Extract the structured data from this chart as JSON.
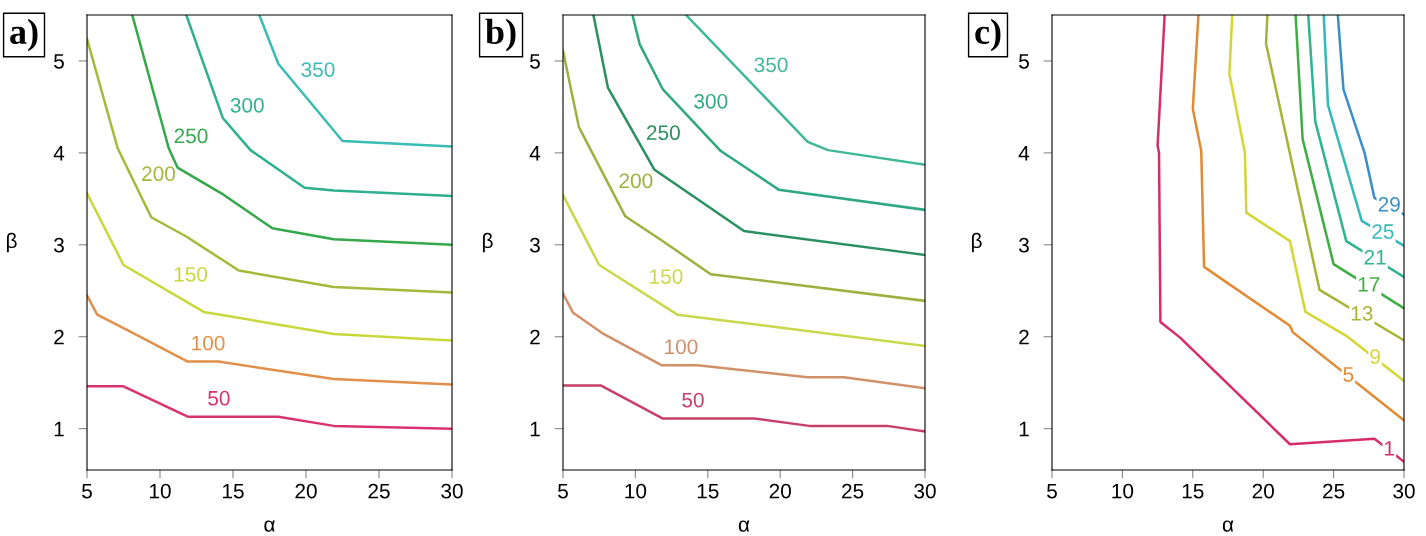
{
  "chart_data": [
    {
      "type": "line",
      "title": "a)",
      "xlabel": "α",
      "ylabel": "β",
      "xlim": [
        5,
        30
      ],
      "ylim": [
        0.55,
        5.5
      ],
      "xticks": [
        5,
        10,
        15,
        20,
        25,
        30
      ],
      "yticks": [
        1,
        2,
        3,
        4,
        5
      ],
      "grid": false,
      "legend": false,
      "marker": "none",
      "line_style": "solid",
      "series": [
        {
          "name": "50",
          "color": "#d8336e",
          "x": [
            5,
            7.5,
            11.9,
            18.1,
            21.9,
            30
          ],
          "values": [
            1.46,
            1.46,
            1.13,
            1.13,
            1.03,
            1.0
          ]
        },
        {
          "name": "100",
          "color": "#e0904a",
          "x": [
            5,
            5.7,
            7.8,
            11.9,
            14,
            21.9,
            30
          ],
          "values": [
            2.45,
            2.24,
            2.07,
            1.73,
            1.73,
            1.54,
            1.48
          ]
        },
        {
          "name": "150",
          "color": "#c8d83a",
          "x": [
            5,
            7.5,
            13,
            21.9,
            30
          ],
          "values": [
            3.56,
            2.78,
            2.27,
            2.03,
            1.96
          ]
        },
        {
          "name": "200",
          "color": "#a6b83a",
          "x": [
            5,
            7.1,
            9.4,
            11.8,
            15.4,
            21.9,
            30
          ],
          "values": [
            5.24,
            4.05,
            3.3,
            3.09,
            2.72,
            2.54,
            2.48
          ]
        },
        {
          "name": "250",
          "color": "#34a84a",
          "x": [
            8.1,
            10.6,
            11.2,
            14.2,
            17.7,
            21.9,
            30
          ],
          "values": [
            5.5,
            4.05,
            3.84,
            3.56,
            3.18,
            3.06,
            3.0
          ]
        },
        {
          "name": "300",
          "color": "#2eb08e",
          "x": [
            11.8,
            14.3,
            16.2,
            19.9,
            21.9,
            30
          ],
          "values": [
            5.5,
            4.38,
            4.03,
            3.62,
            3.59,
            3.53
          ]
        },
        {
          "name": "350",
          "color": "#38bcb4",
          "x": [
            16.8,
            18.1,
            22.5,
            30
          ],
          "values": [
            5.5,
            4.97,
            4.13,
            4.07
          ]
        }
      ]
    },
    {
      "type": "line",
      "title": "b)",
      "xlabel": "α",
      "ylabel": "β",
      "xlim": [
        5,
        30
      ],
      "ylim": [
        0.55,
        5.5
      ],
      "xticks": [
        5,
        10,
        15,
        20,
        25,
        30
      ],
      "yticks": [
        1,
        2,
        3,
        4,
        5
      ],
      "grid": false,
      "legend": false,
      "marker": "none",
      "line_style": "solid",
      "series": [
        {
          "name": "50",
          "color": "#c8406a",
          "x": [
            5,
            7.6,
            11.9,
            18.2,
            22,
            27.4,
            30
          ],
          "values": [
            1.47,
            1.47,
            1.11,
            1.11,
            1.03,
            1.03,
            0.97
          ]
        },
        {
          "name": "100",
          "color": "#d0906a",
          "x": [
            5,
            5.7,
            7.7,
            11.8,
            14.3,
            21.9,
            24.4,
            30
          ],
          "values": [
            2.47,
            2.26,
            2.04,
            1.69,
            1.69,
            1.56,
            1.56,
            1.44
          ]
        },
        {
          "name": "150",
          "color": "#c8d84a",
          "x": [
            5,
            7.5,
            12.9,
            30
          ],
          "values": [
            3.54,
            2.78,
            2.24,
            1.9
          ]
        },
        {
          "name": "200",
          "color": "#9eb040",
          "x": [
            5,
            6.1,
            9.3,
            11.8,
            15.2,
            30
          ],
          "values": [
            5.11,
            4.28,
            3.31,
            3.05,
            2.68,
            2.39
          ]
        },
        {
          "name": "250",
          "color": "#2a9060",
          "x": [
            7.1,
            8.1,
            11.3,
            17.5,
            30
          ],
          "values": [
            5.5,
            4.71,
            3.82,
            3.15,
            2.89
          ]
        },
        {
          "name": "300",
          "color": "#2ea882",
          "x": [
            9.8,
            10.3,
            11.9,
            15.9,
            19.9,
            30
          ],
          "values": [
            5.5,
            5.18,
            4.69,
            4.02,
            3.6,
            3.38
          ]
        },
        {
          "name": "350",
          "color": "#40b898",
          "x": [
            13.5,
            21.9,
            23.3,
            30
          ],
          "values": [
            5.5,
            4.12,
            4.03,
            3.87
          ]
        }
      ]
    },
    {
      "type": "line",
      "title": "c)",
      "xlabel": "α",
      "ylabel": "β",
      "xlim": [
        5,
        30
      ],
      "ylim": [
        0.55,
        5.5
      ],
      "xticks": [
        5,
        10,
        15,
        20,
        25,
        30
      ],
      "yticks": [
        1,
        2,
        3,
        4,
        5
      ],
      "grid": false,
      "legend": false,
      "marker": "none",
      "line_style": "solid",
      "series": [
        {
          "name": "1",
          "color": "#d82c6a",
          "x": [
            13,
            12.5,
            12.6,
            12.7,
            14.1,
            21.9,
            27.9,
            30
          ],
          "values": [
            5.5,
            4.08,
            4.0,
            2.16,
            1.99,
            0.83,
            0.89,
            0.64
          ]
        },
        {
          "name": "5",
          "color": "#e08a34",
          "x": [
            15.4,
            15,
            15.6,
            15.8,
            21.9,
            22.1,
            30
          ],
          "values": [
            5.5,
            4.48,
            4.02,
            2.76,
            2.12,
            2.05,
            1.09
          ]
        },
        {
          "name": "9",
          "color": "#d4d634",
          "x": [
            17.8,
            17.6,
            18.7,
            18.8,
            21.9,
            23,
            25.9,
            30
          ],
          "values": [
            5.5,
            4.86,
            4.0,
            3.35,
            3.04,
            2.27,
            2.01,
            1.52
          ]
        },
        {
          "name": "13",
          "color": "#a6b436",
          "x": [
            20.3,
            20.2,
            24,
            30
          ],
          "values": [
            5.5,
            5.19,
            2.51,
            1.96
          ]
        },
        {
          "name": "17",
          "color": "#3eae42",
          "x": [
            22.3,
            22.8,
            25,
            30
          ],
          "values": [
            5.5,
            4.15,
            2.79,
            2.31
          ]
        },
        {
          "name": "21",
          "color": "#2eb48e",
          "x": [
            23.2,
            23.7,
            25.9,
            30
          ],
          "values": [
            5.5,
            4.34,
            3.04,
            2.65
          ]
        },
        {
          "name": "25",
          "color": "#34b8b8",
          "x": [
            24.3,
            24.6,
            27,
            30
          ],
          "values": [
            5.5,
            4.52,
            3.26,
            2.99
          ]
        },
        {
          "name": "29",
          "color": "#3a8ec8",
          "x": [
            25.3,
            25.7,
            27.2,
            27.9,
            30
          ],
          "values": [
            5.5,
            4.69,
            4.0,
            3.51,
            3.33
          ]
        }
      ]
    }
  ]
}
